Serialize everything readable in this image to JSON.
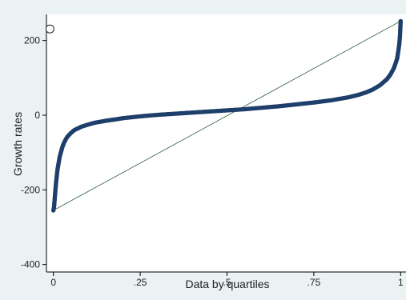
{
  "chart_data": {
    "type": "scatter",
    "title": "",
    "xlabel": "Data by quartiles",
    "ylabel": "Growth rates",
    "xlim": [
      -0.02,
      1.02
    ],
    "ylim": [
      -420,
      270
    ],
    "xticks": [
      {
        "value": 0,
        "label": "0"
      },
      {
        "value": 0.25,
        "label": ".25"
      },
      {
        "value": 0.5,
        "label": ".5"
      },
      {
        "value": 0.75,
        "label": ".75"
      },
      {
        "value": 1,
        "label": "1"
      }
    ],
    "yticks": [
      {
        "value": -400,
        "label": "-400"
      },
      {
        "value": -200,
        "label": "-200"
      },
      {
        "value": 0,
        "label": "0"
      },
      {
        "value": 200,
        "label": "200"
      }
    ],
    "grid": false,
    "legend": "none",
    "series": [
      {
        "kind": "points",
        "color": "#1f3f6b",
        "x": [
          0,
          0.002,
          0.004,
          0.006,
          0.008,
          0.01,
          0.012,
          0.015,
          0.018,
          0.022,
          0.026,
          0.03,
          0.035,
          0.04,
          0.05,
          0.06,
          0.08,
          0.1,
          0.12,
          0.15,
          0.18,
          0.2,
          0.25,
          0.3,
          0.35,
          0.4,
          0.45,
          0.5,
          0.55,
          0.6,
          0.65,
          0.7,
          0.75,
          0.8,
          0.85,
          0.88,
          0.9,
          0.92,
          0.94,
          0.96,
          0.97,
          0.98,
          0.985,
          0.99,
          0.993,
          0.996,
          0.998,
          1
        ],
        "y": [
          -255,
          -245,
          -222,
          -198,
          -178,
          -160,
          -145,
          -128,
          -112,
          -98,
          -85,
          -75,
          -66,
          -58,
          -48,
          -40,
          -31,
          -25,
          -20,
          -15,
          -11,
          -8,
          -3,
          1,
          4,
          7,
          10,
          13,
          16,
          20,
          24,
          29,
          34,
          40,
          48,
          55,
          61,
          69,
          80,
          96,
          108,
          125,
          138,
          152,
          170,
          190,
          212,
          252
        ]
      },
      {
        "kind": "line",
        "color": "#3d6b4c",
        "x": [
          0,
          1
        ],
        "y": [
          -255,
          252
        ]
      }
    ],
    "annotations": [
      {
        "kind": "hollow-circle",
        "x": -0.01,
        "y": 231
      }
    ]
  }
}
